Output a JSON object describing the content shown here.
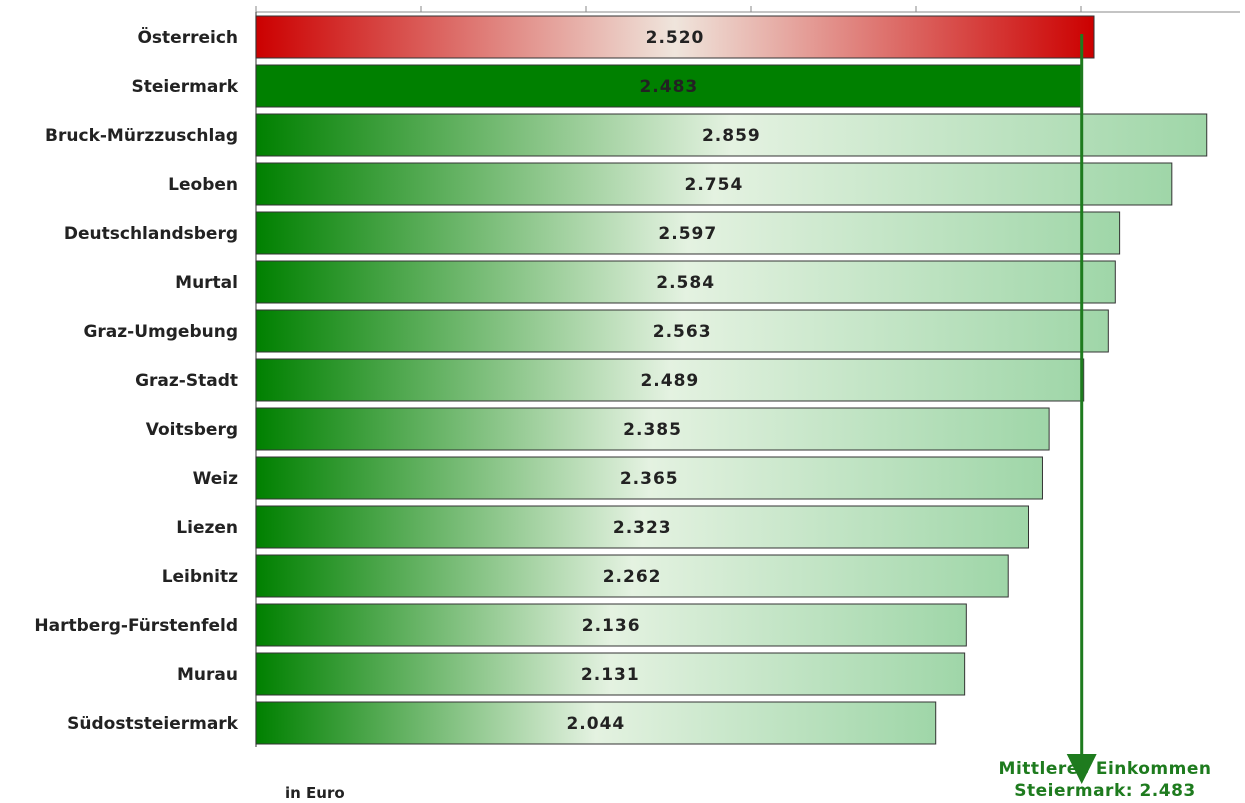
{
  "chart_data": {
    "type": "bar",
    "orientation": "horizontal",
    "categories": [
      "Österreich",
      "Steiermark",
      "Bruck-Mürzzuschlag",
      "Leoben",
      "Deutschlandsberg",
      "Murtal",
      "Graz-Umgebung",
      "Graz-Stadt",
      "Voitsberg",
      "Weiz",
      "Liezen",
      "Leibnitz",
      "Hartberg-Fürstenfeld",
      "Murau",
      "Südoststeiermark"
    ],
    "values": [
      2520,
      2483,
      2859,
      2754,
      2597,
      2584,
      2563,
      2489,
      2385,
      2365,
      2323,
      2262,
      2136,
      2131,
      2044
    ],
    "value_labels": [
      "2.520",
      "2.483",
      "2.859",
      "2.754",
      "2.597",
      "2.584",
      "2.563",
      "2.489",
      "2.385",
      "2.365",
      "2.323",
      "2.262",
      "2.136",
      "2.131",
      "2.044"
    ],
    "xlim": [
      0,
      2959
    ],
    "unit_label": "in Euro",
    "reference_line": {
      "value": 2483,
      "label_line1": "Mittleres Einkommen",
      "label_line2": "Steiermark: 2.483",
      "color": "#1e7b1e"
    },
    "colors": {
      "austria": "#cc0000",
      "styria": "#008000",
      "district_dark": "#008000",
      "district_light": "#e2f1de",
      "district_end": "#9fd6a8"
    },
    "grid": false,
    "legend": "none"
  }
}
